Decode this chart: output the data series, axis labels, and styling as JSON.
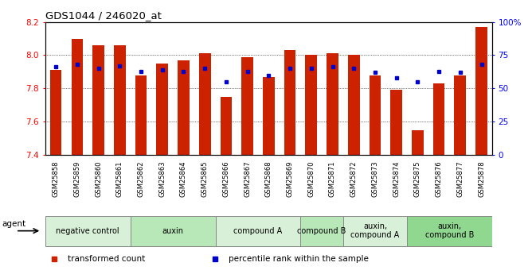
{
  "title": "GDS1044 / 246020_at",
  "samples": [
    "GSM25858",
    "GSM25859",
    "GSM25860",
    "GSM25861",
    "GSM25862",
    "GSM25863",
    "GSM25864",
    "GSM25865",
    "GSM25866",
    "GSM25867",
    "GSM25868",
    "GSM25869",
    "GSM25870",
    "GSM25871",
    "GSM25872",
    "GSM25873",
    "GSM25874",
    "GSM25875",
    "GSM25876",
    "GSM25877",
    "GSM25878"
  ],
  "bar_values": [
    7.91,
    8.1,
    8.06,
    8.06,
    7.88,
    7.95,
    7.97,
    8.01,
    7.75,
    7.99,
    7.87,
    8.03,
    8.0,
    8.01,
    8.0,
    7.88,
    7.79,
    7.55,
    7.83,
    7.88,
    8.17
  ],
  "percentile_values": [
    66,
    68,
    65,
    67,
    63,
    64,
    63,
    65,
    55,
    63,
    60,
    65,
    65,
    66,
    65,
    62,
    58,
    55,
    63,
    62,
    68
  ],
  "bar_color": "#cc2200",
  "percentile_color": "#0000cc",
  "ylim_left": [
    7.4,
    8.2
  ],
  "ylim_right": [
    0,
    100
  ],
  "yticks_left": [
    7.4,
    7.6,
    7.8,
    8.0,
    8.2
  ],
  "yticks_right": [
    0,
    25,
    50,
    75,
    100
  ],
  "ytick_right_labels": [
    "0",
    "25",
    "50",
    "75",
    "100%"
  ],
  "grid_values": [
    7.6,
    7.8,
    8.0
  ],
  "groups": [
    {
      "label": "negative control",
      "start": 0,
      "end": 4,
      "color": "#d8f0d8"
    },
    {
      "label": "auxin",
      "start": 4,
      "end": 8,
      "color": "#b8e8b8"
    },
    {
      "label": "compound A",
      "start": 8,
      "end": 12,
      "color": "#d8f0d8"
    },
    {
      "label": "compound B",
      "start": 12,
      "end": 14,
      "color": "#b8e8b8"
    },
    {
      "label": "auxin,\ncompound A",
      "start": 14,
      "end": 17,
      "color": "#d8f0d8"
    },
    {
      "label": "auxin,\ncompound B",
      "start": 17,
      "end": 21,
      "color": "#90d890"
    }
  ],
  "bar_width": 0.55,
  "base_value": 7.4,
  "legend_items": [
    {
      "label": "transformed count",
      "color": "#cc2200"
    },
    {
      "label": "percentile rank within the sample",
      "color": "#0000cc"
    }
  ],
  "agent_label": "agent"
}
